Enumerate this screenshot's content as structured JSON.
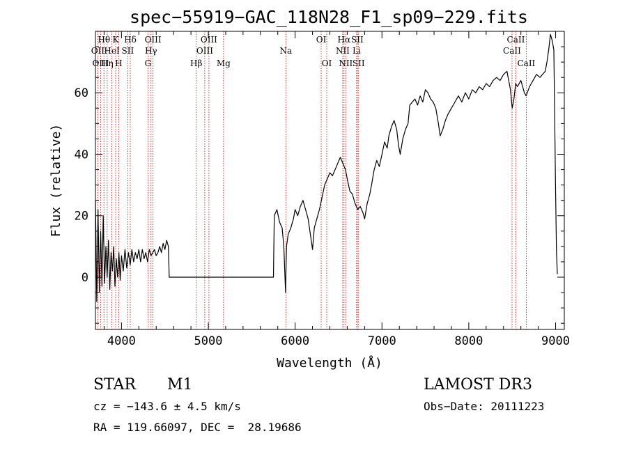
{
  "chart_data": {
    "type": "line",
    "title": "spec−55919−GAC_118N28_F1_sp09−229.fits",
    "xlabel": "Wavelength (Å)",
    "ylabel": "Flux (relative)",
    "xlim": [
      3700,
      9100
    ],
    "ylim": [
      -17,
      80
    ],
    "xticks": [
      4000,
      5000,
      6000,
      7000,
      8000,
      9000
    ],
    "yticks": [
      0,
      20,
      40,
      60
    ],
    "grid": false,
    "series": [
      {
        "name": "flux",
        "points": [
          [
            3700,
            25
          ],
          [
            3715,
            -8
          ],
          [
            3730,
            22
          ],
          [
            3745,
            -5
          ],
          [
            3760,
            15
          ],
          [
            3775,
            -3
          ],
          [
            3790,
            20
          ],
          [
            3805,
            -2
          ],
          [
            3820,
            10
          ],
          [
            3835,
            0
          ],
          [
            3850,
            12
          ],
          [
            3865,
            -4
          ],
          [
            3880,
            8
          ],
          [
            3895,
            2
          ],
          [
            3910,
            10
          ],
          [
            3925,
            -3
          ],
          [
            3940,
            6
          ],
          [
            3955,
            0
          ],
          [
            3970,
            8
          ],
          [
            3985,
            -1
          ],
          [
            4000,
            7
          ],
          [
            4020,
            2
          ],
          [
            4040,
            9
          ],
          [
            4060,
            3
          ],
          [
            4080,
            8
          ],
          [
            4100,
            4
          ],
          [
            4120,
            9
          ],
          [
            4140,
            5
          ],
          [
            4160,
            8
          ],
          [
            4180,
            6
          ],
          [
            4200,
            9
          ],
          [
            4220,
            5
          ],
          [
            4240,
            9
          ],
          [
            4260,
            6
          ],
          [
            4280,
            8
          ],
          [
            4300,
            5
          ],
          [
            4320,
            9
          ],
          [
            4340,
            7
          ],
          [
            4360,
            8
          ],
          [
            4380,
            9
          ],
          [
            4400,
            7
          ],
          [
            4420,
            8
          ],
          [
            4440,
            10
          ],
          [
            4460,
            8
          ],
          [
            4480,
            11
          ],
          [
            4500,
            9
          ],
          [
            4520,
            12
          ],
          [
            4540,
            10
          ],
          [
            4550,
            0
          ],
          [
            5750,
            0
          ],
          [
            5760,
            20
          ],
          [
            5790,
            22
          ],
          [
            5820,
            18
          ],
          [
            5850,
            16
          ],
          [
            5870,
            10
          ],
          [
            5890,
            -5
          ],
          [
            5900,
            10
          ],
          [
            5920,
            14
          ],
          [
            5950,
            16
          ],
          [
            5980,
            19
          ],
          [
            6000,
            22
          ],
          [
            6030,
            20
          ],
          [
            6060,
            23
          ],
          [
            6090,
            25
          ],
          [
            6120,
            22
          ],
          [
            6150,
            19
          ],
          [
            6180,
            13
          ],
          [
            6200,
            9
          ],
          [
            6220,
            16
          ],
          [
            6250,
            19
          ],
          [
            6280,
            22
          ],
          [
            6310,
            26
          ],
          [
            6340,
            30
          ],
          [
            6370,
            32
          ],
          [
            6400,
            34
          ],
          [
            6430,
            33
          ],
          [
            6460,
            35
          ],
          [
            6490,
            37
          ],
          [
            6520,
            39
          ],
          [
            6550,
            37
          ],
          [
            6580,
            35
          ],
          [
            6600,
            32
          ],
          [
            6630,
            28
          ],
          [
            6660,
            27
          ],
          [
            6690,
            24
          ],
          [
            6720,
            22
          ],
          [
            6750,
            23
          ],
          [
            6780,
            21
          ],
          [
            6800,
            19
          ],
          [
            6830,
            24
          ],
          [
            6860,
            27
          ],
          [
            6880,
            30
          ],
          [
            6910,
            35
          ],
          [
            6940,
            38
          ],
          [
            6970,
            36
          ],
          [
            7000,
            40
          ],
          [
            7030,
            44
          ],
          [
            7060,
            42
          ],
          [
            7080,
            46
          ],
          [
            7110,
            49
          ],
          [
            7140,
            51
          ],
          [
            7170,
            48
          ],
          [
            7190,
            43
          ],
          [
            7210,
            40
          ],
          [
            7240,
            45
          ],
          [
            7270,
            48
          ],
          [
            7300,
            50
          ],
          [
            7320,
            56
          ],
          [
            7350,
            57
          ],
          [
            7380,
            58
          ],
          [
            7410,
            56
          ],
          [
            7440,
            59
          ],
          [
            7470,
            57
          ],
          [
            7500,
            61
          ],
          [
            7530,
            60
          ],
          [
            7560,
            58
          ],
          [
            7590,
            57
          ],
          [
            7620,
            55
          ],
          [
            7650,
            50
          ],
          [
            7670,
            46
          ],
          [
            7700,
            48
          ],
          [
            7730,
            51
          ],
          [
            7760,
            53
          ],
          [
            7800,
            55
          ],
          [
            7840,
            57
          ],
          [
            7880,
            59
          ],
          [
            7920,
            57
          ],
          [
            7960,
            60
          ],
          [
            8000,
            58
          ],
          [
            8040,
            61
          ],
          [
            8080,
            60
          ],
          [
            8120,
            62
          ],
          [
            8160,
            61
          ],
          [
            8200,
            63
          ],
          [
            8240,
            62
          ],
          [
            8280,
            64
          ],
          [
            8320,
            65
          ],
          [
            8360,
            64
          ],
          [
            8400,
            66
          ],
          [
            8440,
            67
          ],
          [
            8480,
            61
          ],
          [
            8500,
            55
          ],
          [
            8520,
            58
          ],
          [
            8540,
            63
          ],
          [
            8560,
            62
          ],
          [
            8600,
            64
          ],
          [
            8640,
            60
          ],
          [
            8660,
            59
          ],
          [
            8700,
            62
          ],
          [
            8740,
            64
          ],
          [
            8780,
            66
          ],
          [
            8820,
            65
          ],
          [
            8850,
            66
          ],
          [
            8880,
            67
          ],
          [
            8900,
            70
          ],
          [
            8920,
            74
          ],
          [
            8940,
            79
          ],
          [
            8960,
            77
          ],
          [
            8980,
            74
          ],
          [
            9000,
            28
          ],
          [
            9010,
            8
          ],
          [
            9020,
            1
          ]
        ]
      }
    ],
    "spectral_lines": [
      {
        "label": "Hθ",
        "x": 3798,
        "row": 1
      },
      {
        "label": "OII",
        "x": 3727,
        "row": 2
      },
      {
        "label": "OIII",
        "x": 3760,
        "row": 3
      },
      {
        "label": "K",
        "x": 3933,
        "row": 1
      },
      {
        "label": "HeI",
        "x": 3889,
        "row": 2
      },
      {
        "label": "Hη",
        "x": 3835,
        "row": 3
      },
      {
        "label": "H",
        "x": 3968,
        "row": 3
      },
      {
        "label": "Hδ",
        "x": 4101,
        "row": 1
      },
      {
        "label": "SII",
        "x": 4072,
        "row": 2
      },
      {
        "label": "OIII",
        "x": 4363,
        "row": 1
      },
      {
        "label": "Hγ",
        "x": 4340,
        "row": 2
      },
      {
        "label": "G",
        "x": 4305,
        "row": 3
      },
      {
        "label": "OIII",
        "x": 5007,
        "row": 1
      },
      {
        "label": "OIII",
        "x": 4959,
        "row": 2
      },
      {
        "label": "Hβ",
        "x": 4861,
        "row": 3
      },
      {
        "label": "Mg",
        "x": 5175,
        "row": 3
      },
      {
        "label": "Na",
        "x": 5893,
        "row": 2
      },
      {
        "label": "OI",
        "x": 6300,
        "row": 1
      },
      {
        "label": "OI",
        "x": 6364,
        "row": 3
      },
      {
        "label": "Hα",
        "x": 6563,
        "row": 1
      },
      {
        "label": "NII",
        "x": 6548,
        "row": 2
      },
      {
        "label": "NII",
        "x": 6583,
        "row": 3
      },
      {
        "label": "SII",
        "x": 6716,
        "row": 1
      },
      {
        "label": "Li",
        "x": 6708,
        "row": 2
      },
      {
        "label": "SII",
        "x": 6731,
        "row": 3
      },
      {
        "label": "CaII",
        "x": 8542,
        "row": 1
      },
      {
        "label": "CaII",
        "x": 8498,
        "row": 2
      },
      {
        "label": "CaII",
        "x": 8662,
        "row": 3
      }
    ]
  },
  "info": {
    "object_class": "STAR",
    "subclass": "M1",
    "survey": "LAMOST DR3",
    "cz": "cz = −143.6 ± 4.5 km/s",
    "obs_date": "Obs−Date: 20111223",
    "coords": "RA = 119.66097, DEC =  28.19686"
  },
  "colors": {
    "spectrum": "#000000",
    "line_markers": "#c00000",
    "axes": "#000000"
  }
}
